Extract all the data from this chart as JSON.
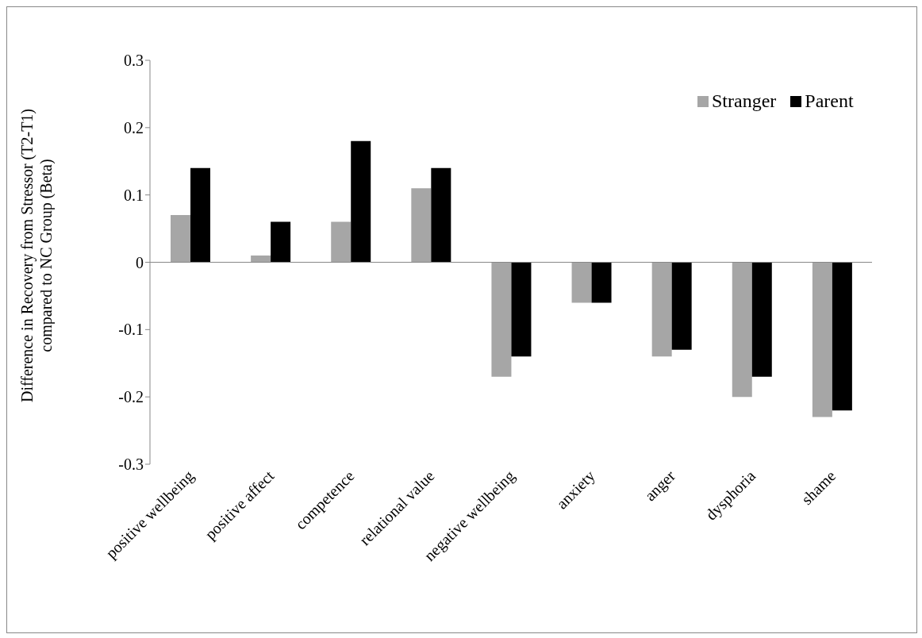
{
  "chart_data": {
    "type": "bar",
    "ylabel": "Difference in Recovery from Stressor (T2-T1)\ncompared to NC Group (Beta)",
    "categories": [
      "positive wellbeing",
      "positive affect",
      "competence",
      "relational value",
      "negative wellbeing",
      "anxiety",
      "anger",
      "dysphoria",
      "shame"
    ],
    "series": [
      {
        "name": "Stranger",
        "color": "#a6a6a6",
        "values": [
          0.07,
          0.01,
          0.06,
          0.11,
          -0.17,
          -0.06,
          -0.14,
          -0.2,
          -0.23
        ]
      },
      {
        "name": "Parent",
        "color": "#000000",
        "values": [
          0.14,
          0.06,
          0.18,
          0.14,
          -0.14,
          -0.06,
          -0.13,
          -0.17,
          -0.22
        ]
      }
    ],
    "ylim": [
      -0.3,
      0.3
    ],
    "yticks": [
      -0.3,
      -0.2,
      -0.1,
      0,
      0.1,
      0.2,
      0.3
    ],
    "legend": "top right"
  }
}
